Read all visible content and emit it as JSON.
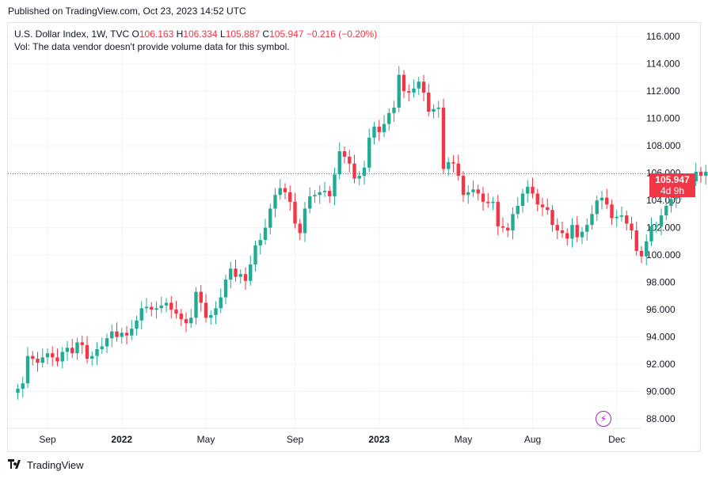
{
  "header": {
    "published": "Published on TradingView.com, Oct 23, 2023 14:52 UTC"
  },
  "legend": {
    "symbol": "U.S. Dollar Index, 1W, TVC",
    "open_label": "O",
    "open": "106.163",
    "high_label": "H",
    "high": "106.334",
    "low_label": "L",
    "low": "105.887",
    "close_label": "C",
    "close": "105.947",
    "change": "−0.216 (−0.20%)",
    "volume_note": "Vol: The data vendor doesn't provide volume data for this symbol."
  },
  "last_price": {
    "value": "105.947",
    "countdown": "4d 9h"
  },
  "footer": {
    "brand": "TradingView"
  },
  "colors": {
    "up": "#22ab94",
    "down": "#f23645",
    "grid": "#f0f3fa",
    "text": "#131722",
    "event": "#9c27b0"
  },
  "icons": {
    "event": "lightning-bolt-icon",
    "logo": "tradingview-logo-icon"
  },
  "chart_data": {
    "type": "candlestick",
    "interval": "1W",
    "ylim": [
      87.3,
      117.0
    ],
    "y_ticks": [
      "88.000",
      "90.000",
      "92.000",
      "94.000",
      "96.000",
      "98.000",
      "100.000",
      "102.000",
      "104.000",
      "106.000",
      "108.000",
      "110.000",
      "112.000",
      "114.000",
      "116.000"
    ],
    "x_ticks": [
      {
        "label": "Sep",
        "week": 6
      },
      {
        "label": "2022",
        "week": 21
      },
      {
        "label": "May",
        "week": 38
      },
      {
        "label": "Sep",
        "week": 56
      },
      {
        "label": "2023",
        "week": 73
      },
      {
        "label": "May",
        "week": 90
      },
      {
        "label": "Aug",
        "week": 104
      },
      {
        "label": "Dec",
        "week": 121
      }
    ],
    "week_range": [
      -2,
      126
    ],
    "last_price": 105.947,
    "closes": [
      90.2,
      90.6,
      92.6,
      92.4,
      92.1,
      92.5,
      92.8,
      92.5,
      92.2,
      92.9,
      93.2,
      92.8,
      93.6,
      93.4,
      92.4,
      92.6,
      93.1,
      93.3,
      93.9,
      94.4,
      94.0,
      94.3,
      94.1,
      94.6,
      95.2,
      96.1,
      96.2,
      96.0,
      96.1,
      96.3,
      96.5,
      96.0,
      95.7,
      95.3,
      95.0,
      95.4,
      97.3,
      96.5,
      95.4,
      95.6,
      96.1,
      96.9,
      98.2,
      99.0,
      98.4,
      98.6,
      98.1,
      99.3,
      100.7,
      101.1,
      102.0,
      103.4,
      104.4,
      104.9,
      104.6,
      103.9,
      102.3,
      101.6,
      103.4,
      104.3,
      104.4,
      104.6,
      104.7,
      104.3,
      105.9,
      107.6,
      107.2,
      106.7,
      105.6,
      105.8,
      106.4,
      108.6,
      109.4,
      109.0,
      109.6,
      110.4,
      110.8,
      113.2,
      112.0,
      111.9,
      112.2,
      112.7,
      111.9,
      110.5,
      110.7,
      110.8,
      106.3,
      106.8,
      106.7,
      105.8,
      104.4,
      104.6,
      104.8,
      104.5,
      103.9,
      103.8,
      103.9,
      102.1,
      102.0,
      101.8,
      103.0,
      103.6,
      104.5,
      105.0,
      104.5,
      103.7,
      103.5,
      103.3,
      102.2,
      101.8,
      101.6,
      101.2,
      102.2,
      101.3,
      101.7,
      102.2,
      103.0,
      104.0,
      104.2,
      103.7,
      102.7,
      102.8,
      102.9,
      102.3,
      101.8,
      100.3,
      99.9,
      101.0,
      102.1,
      102.1,
      102.9,
      103.6,
      104.1,
      104.4,
      105.0,
      105.3,
      105.4,
      106.1,
      105.8,
      106.1,
      106.6,
      106.5,
      106.2,
      105.95
    ],
    "opens": [
      89.9,
      90.2,
      90.6,
      92.6,
      92.4,
      92.1,
      92.5,
      92.8,
      92.5,
      92.2,
      92.9,
      93.2,
      92.8,
      93.6,
      93.4,
      92.4,
      92.6,
      93.1,
      93.3,
      93.9,
      94.4,
      94.0,
      94.3,
      94.1,
      94.6,
      95.2,
      96.1,
      96.2,
      96.0,
      96.1,
      96.3,
      96.5,
      96.0,
      95.7,
      95.3,
      95.0,
      95.4,
      97.3,
      96.5,
      95.4,
      95.6,
      96.1,
      96.9,
      98.2,
      99.0,
      98.4,
      98.6,
      98.1,
      99.3,
      100.7,
      101.1,
      102.0,
      103.4,
      104.4,
      104.9,
      104.6,
      103.9,
      102.3,
      101.6,
      103.4,
      104.3,
      104.4,
      104.6,
      104.7,
      104.3,
      105.9,
      107.6,
      107.2,
      106.7,
      105.6,
      105.8,
      106.4,
      108.6,
      109.4,
      109.0,
      109.6,
      110.4,
      110.8,
      113.2,
      112.0,
      111.9,
      112.2,
      112.7,
      111.9,
      110.5,
      110.7,
      110.8,
      106.3,
      106.8,
      106.7,
      105.8,
      104.4,
      104.6,
      104.8,
      104.5,
      103.9,
      103.8,
      103.9,
      102.1,
      102.0,
      101.8,
      103.0,
      103.6,
      104.5,
      105.0,
      104.5,
      103.7,
      103.5,
      103.3,
      102.2,
      101.8,
      101.6,
      101.2,
      102.2,
      101.3,
      101.7,
      102.2,
      103.0,
      104.0,
      104.2,
      103.7,
      102.7,
      102.8,
      102.9,
      102.3,
      101.8,
      100.3,
      99.9,
      101.0,
      102.1,
      102.1,
      102.9,
      103.6,
      104.1,
      104.4,
      105.0,
      105.3,
      105.4,
      106.1,
      105.8,
      106.1,
      106.6,
      106.5,
      106.2
    ]
  }
}
